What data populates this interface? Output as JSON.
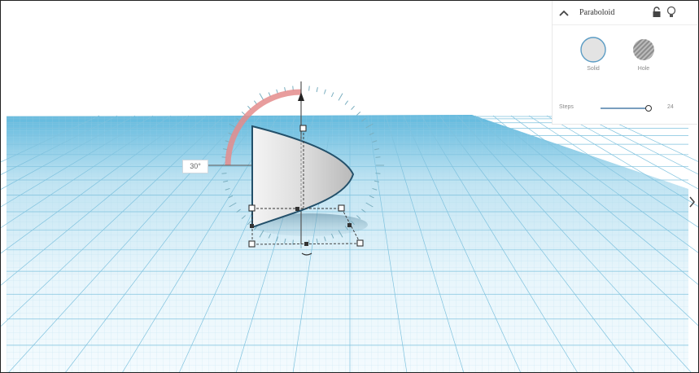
{
  "shape_panel": {
    "title": "Paraboloid",
    "solid_label": "Solid",
    "hole_label": "Hole",
    "steps_label": "Steps",
    "steps_value": "24",
    "steps_fraction": 1.0,
    "selected_mode": "Solid"
  },
  "viewport": {
    "rotation_readout": "30°",
    "workplane_color": "#5fb8dd",
    "rotation_arc_color": "#e48c8c"
  },
  "icons": {
    "collapse": "chevron-up-icon",
    "lock": "lock-icon",
    "visibility": "lightbulb-icon",
    "side_toggle": "chevron-right-icon",
    "rotate": "rotate-arrow-icon"
  }
}
